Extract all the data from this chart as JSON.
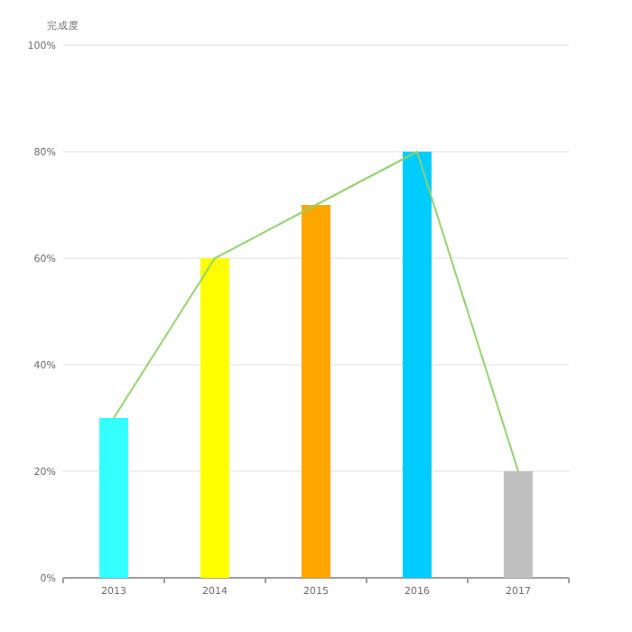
{
  "chart_data": {
    "type": "bar",
    "ylabel": "完成度",
    "categories": [
      "2013",
      "2014",
      "2015",
      "2016",
      "2017"
    ],
    "series": [
      {
        "colors": [
          "#33ffff",
          "#ffff00",
          "#ffa500",
          "#00ccff",
          "#c0c0c0"
        ],
        "values": [
          30,
          60,
          70,
          80,
          20
        ]
      },
      {
        "type": "line",
        "color": "#8fd16b",
        "marker": "none",
        "values": [
          30,
          60,
          70,
          80,
          20
        ]
      }
    ],
    "ylim": [
      0,
      100
    ],
    "yticks": [
      {
        "value": 0,
        "label": "0%"
      },
      {
        "value": 20,
        "label": "20%"
      },
      {
        "value": 40,
        "label": "40%"
      },
      {
        "value": 60,
        "label": "60%"
      },
      {
        "value": 80,
        "label": "80%"
      },
      {
        "value": 100,
        "label": "100%"
      }
    ],
    "grid": "y"
  }
}
